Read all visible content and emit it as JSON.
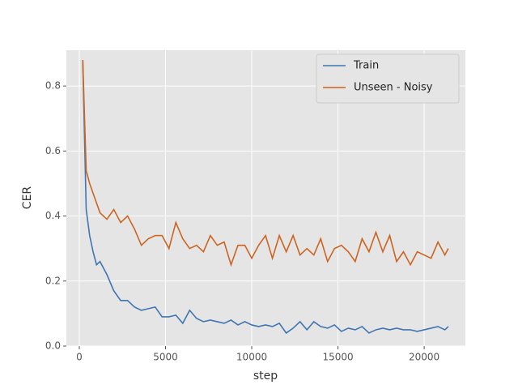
{
  "chart_data": {
    "type": "line",
    "x_label": "step",
    "y_label": "CER",
    "x": [
      200,
      400,
      600,
      800,
      1000,
      1200,
      1600,
      2000,
      2400,
      2800,
      3200,
      3600,
      4000,
      4400,
      4800,
      5200,
      5600,
      6000,
      6400,
      6800,
      7200,
      7600,
      8000,
      8400,
      8800,
      9200,
      9600,
      10000,
      10400,
      10800,
      11200,
      11600,
      12000,
      12400,
      12800,
      13200,
      13600,
      14000,
      14400,
      14800,
      15200,
      15600,
      16000,
      16400,
      16800,
      17200,
      17600,
      18000,
      18400,
      18800,
      19200,
      19600,
      20000,
      20400,
      20800,
      21200,
      21400
    ],
    "series": [
      {
        "name": "Train",
        "color": "#3f76b1",
        "values": [
          0.88,
          0.42,
          0.34,
          0.29,
          0.25,
          0.26,
          0.22,
          0.17,
          0.14,
          0.14,
          0.12,
          0.11,
          0.115,
          0.12,
          0.09,
          0.09,
          0.095,
          0.07,
          0.11,
          0.085,
          0.075,
          0.08,
          0.075,
          0.07,
          0.08,
          0.065,
          0.075,
          0.065,
          0.06,
          0.065,
          0.06,
          0.07,
          0.04,
          0.055,
          0.075,
          0.05,
          0.075,
          0.06,
          0.055,
          0.065,
          0.045,
          0.055,
          0.05,
          0.06,
          0.04,
          0.05,
          0.055,
          0.05,
          0.055,
          0.05,
          0.05,
          0.045,
          0.05,
          0.055,
          0.06,
          0.05,
          0.06
        ]
      },
      {
        "name": "Unseen - Noisy",
        "color": "#cc6420",
        "values": [
          0.88,
          0.54,
          0.5,
          0.47,
          0.44,
          0.41,
          0.39,
          0.42,
          0.38,
          0.4,
          0.36,
          0.31,
          0.33,
          0.34,
          0.34,
          0.3,
          0.38,
          0.33,
          0.3,
          0.31,
          0.29,
          0.34,
          0.31,
          0.32,
          0.25,
          0.31,
          0.31,
          0.27,
          0.31,
          0.34,
          0.27,
          0.34,
          0.29,
          0.34,
          0.28,
          0.3,
          0.28,
          0.33,
          0.26,
          0.3,
          0.31,
          0.29,
          0.26,
          0.33,
          0.29,
          0.35,
          0.29,
          0.34,
          0.26,
          0.29,
          0.25,
          0.29,
          0.28,
          0.27,
          0.32,
          0.28,
          0.3
        ]
      }
    ],
    "xlim": [
      -750,
      22390
    ],
    "ylim": [
      0,
      0.91
    ],
    "xticks": [
      0,
      5000,
      10000,
      15000,
      20000
    ],
    "yticks": [
      {
        "value": 0,
        "label": "0.0"
      },
      0.2,
      0.4,
      0.6,
      0.8
    ],
    "grid": true,
    "legend": "upper right"
  }
}
